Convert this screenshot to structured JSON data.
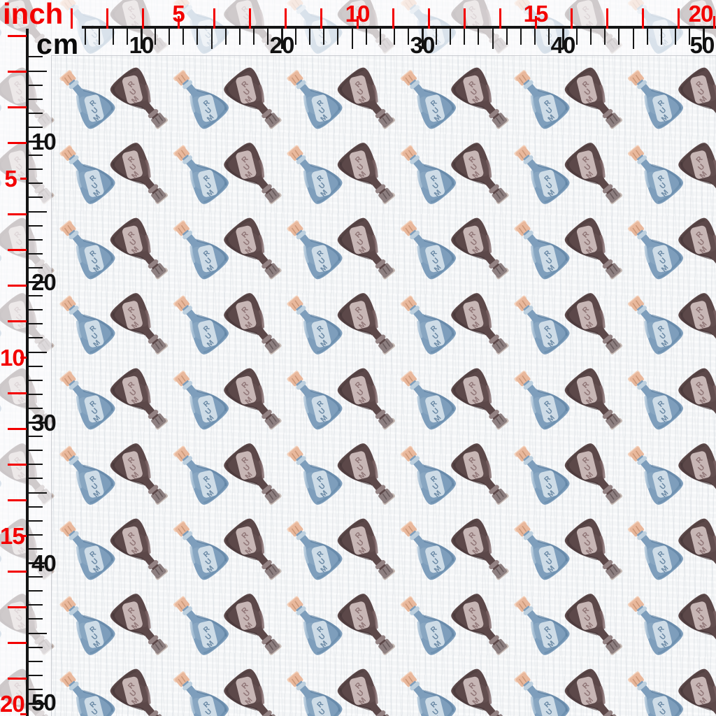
{
  "preview": {
    "description_label": "rum bottle watercolor fabric pattern preview",
    "background_color": "#f6f7f8"
  },
  "rulers": {
    "inch_unit_label": "inch",
    "cm_unit_label": "cm",
    "accent_color": "#f30000",
    "line_color": "#151515",
    "top_ruler": {
      "inch_labels": [
        "5",
        "10",
        "15",
        "20"
      ],
      "cm_labels": [
        "10",
        "20",
        "30",
        "40",
        "50"
      ]
    },
    "left_ruler": {
      "inch_labels": [
        "5",
        "10",
        "15",
        "20"
      ],
      "cm_labels": [
        "10",
        "20",
        "30",
        "40",
        "50"
      ]
    }
  },
  "pattern": {
    "bottle_label_text": "RUM",
    "blue_bottle": {
      "body": "#7e9ebc",
      "body_dark": "#5b7fa0",
      "body_light": "#abc3d7",
      "lip": "#bdd0df",
      "cork": "#e9b89c",
      "cork_light": "#f3d1bb",
      "cork_dark": "#c28d6e",
      "label_bg": "#cedce7",
      "label_ink": "#5f7f9d"
    },
    "brown_bottle": {
      "body": "#5c4849",
      "body_dark": "#443637",
      "body_light": "#7d6465",
      "lip": "#938283",
      "cork": "#8d7f80",
      "cork_light": "#c6bab4",
      "cork_dark": "#5e5051",
      "label_bg": "#c7b6b5",
      "label_ink": "#8a6f70"
    }
  }
}
